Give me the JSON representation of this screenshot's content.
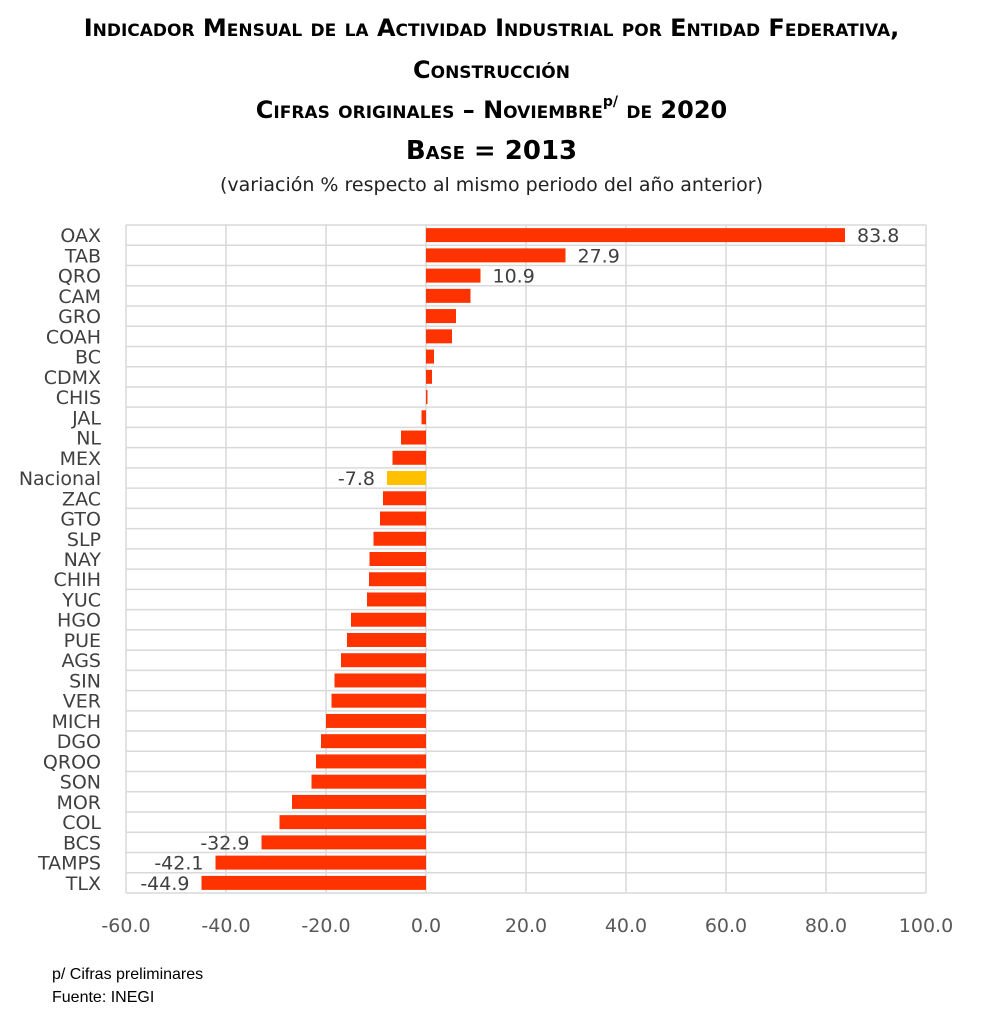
{
  "header": {
    "line1": "Indicador Mensual de la Actividad Industrial por Entidad Federativa,",
    "line2": "Construcción",
    "line3_main": "Cifras originales – Noviembre",
    "line3_sup": "p/",
    "line3_tail": " de 2020",
    "line4": "Base = 2013",
    "subtitle": "(variación % respecto al mismo periodo del año anterior)"
  },
  "footnotes": {
    "note": "p/ Cifras preliminares",
    "source": "Fuente: INEGI"
  },
  "colors": {
    "bar": "#ff3300",
    "highlight": "#ffc000",
    "grid": "#d9d9d9",
    "axis_text": "#595959",
    "label_text": "#404040"
  },
  "chart_data": {
    "type": "bar",
    "orientation": "horizontal",
    "xlim": [
      -60,
      100
    ],
    "xticks": [
      "-60.0",
      "-40.0",
      "-20.0",
      "0.0",
      "20.0",
      "40.0",
      "60.0",
      "80.0",
      "100.0"
    ],
    "xtick_values": [
      -60,
      -40,
      -20,
      0,
      20,
      40,
      60,
      80,
      100
    ],
    "grid": true,
    "highlight_category": "Nacional",
    "categories": [
      "OAX",
      "TAB",
      "QRO",
      "CAM",
      "GRO",
      "COAH",
      "BC",
      "CDMX",
      "CHIS",
      "JAL",
      "NL",
      "MEX",
      "Nacional",
      "ZAC",
      "GTO",
      "SLP",
      "NAY",
      "CHIH",
      "YUC",
      "HGO",
      "PUE",
      "AGS",
      "SIN",
      "VER",
      "MICH",
      "DGO",
      "QROO",
      "SON",
      "MOR",
      "COL",
      "BCS",
      "TAMPS",
      "TLX"
    ],
    "values": [
      83.8,
      27.9,
      10.9,
      8.9,
      6.0,
      5.2,
      1.6,
      1.2,
      0.3,
      -0.9,
      -5.0,
      -6.7,
      -7.8,
      -8.6,
      -9.2,
      -10.5,
      -11.3,
      -11.4,
      -11.8,
      -15.0,
      -15.8,
      -17.0,
      -18.3,
      -18.9,
      -20.0,
      -21.0,
      -22.0,
      -22.9,
      -26.8,
      -29.3,
      -32.9,
      -42.1,
      -44.9
    ],
    "data_labels": [
      {
        "category": "OAX",
        "text": "83.8"
      },
      {
        "category": "TAB",
        "text": "27.9"
      },
      {
        "category": "QRO",
        "text": "10.9"
      },
      {
        "category": "Nacional",
        "text": "-7.8"
      },
      {
        "category": "BCS",
        "text": "-32.9"
      },
      {
        "category": "TAMPS",
        "text": "-42.1"
      },
      {
        "category": "TLX",
        "text": "-44.9"
      }
    ]
  }
}
